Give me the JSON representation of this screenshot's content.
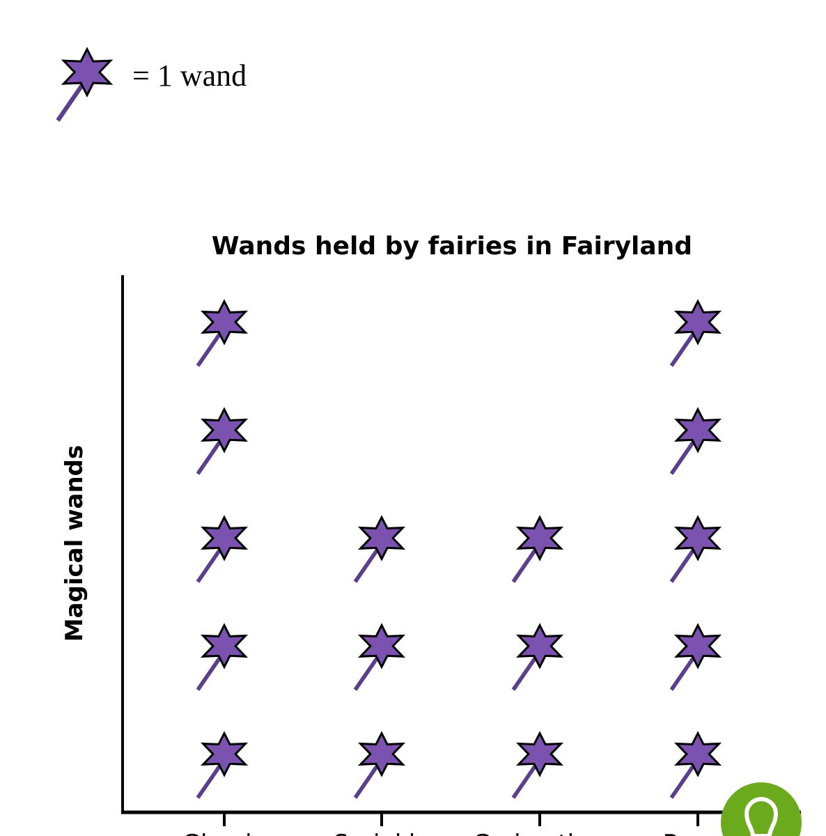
{
  "legend": {
    "text": "= 1 wand",
    "icon": "wand-icon"
  },
  "chart_data": {
    "type": "pictograph",
    "title": "Wands held by fairies in Fairyland",
    "ylabel": "Magical wands",
    "xlabel": "",
    "categories": [
      "Glenda",
      "Sprinkle",
      "Godmother",
      "Bernd"
    ],
    "values": [
      5,
      3,
      3,
      5
    ],
    "unit": 1,
    "colors": {
      "star": "#7b52b0",
      "stick": "#5b3f8c",
      "outline": "#000000"
    }
  },
  "hint_button": {
    "icon": "lightbulb-icon",
    "color": "#6aaa1c"
  }
}
